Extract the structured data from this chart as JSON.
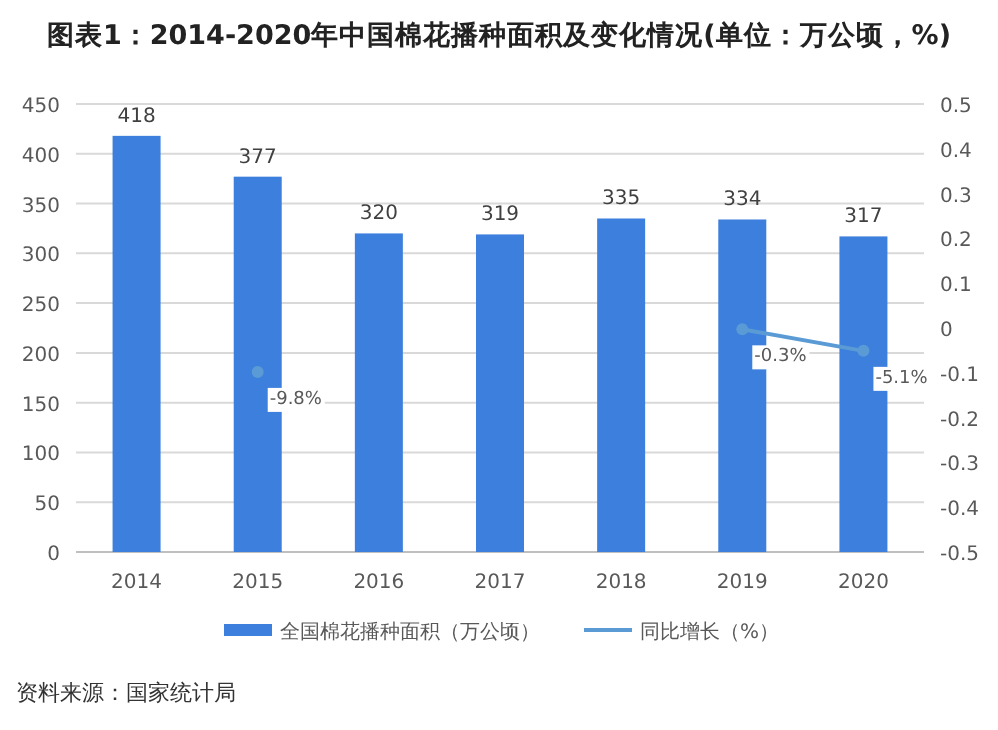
{
  "chart_data": {
    "type": "bar",
    "title": "图表1：2014-2020年中国棉花播种面积及变化情况(单位：万公顷，%)",
    "categories": [
      "2014",
      "2015",
      "2016",
      "2017",
      "2018",
      "2019",
      "2020"
    ],
    "series": [
      {
        "name": "全国棉花播种面积（万公顷）",
        "color": "#3c7fdc",
        "values": [
          418,
          377,
          320,
          319,
          335,
          334,
          317
        ],
        "data_labels": true
      },
      {
        "name": "同比增长（%）",
        "type": "line",
        "axis": "y2",
        "color": "#5b9bd5",
        "values": [
          null,
          -0.098,
          null,
          null,
          null,
          -0.003,
          -0.051
        ],
        "value_labels": [
          null,
          "-9.8%",
          null,
          null,
          null,
          "-0.3%",
          "-5.1%"
        ],
        "marker": "circle"
      }
    ],
    "ylim": [
      0,
      450
    ],
    "yticks": [
      0,
      50,
      100,
      150,
      200,
      250,
      300,
      350,
      400,
      450
    ],
    "y2lim": [
      -0.5,
      0.5
    ],
    "y2ticks": [
      -0.5,
      -0.4,
      -0.3,
      -0.2,
      -0.1,
      0,
      0.1,
      0.2,
      0.3,
      0.4,
      0.5
    ],
    "grid": "y",
    "legend": "bottom",
    "annotations": [
      "资料来源：国家统计局"
    ]
  }
}
